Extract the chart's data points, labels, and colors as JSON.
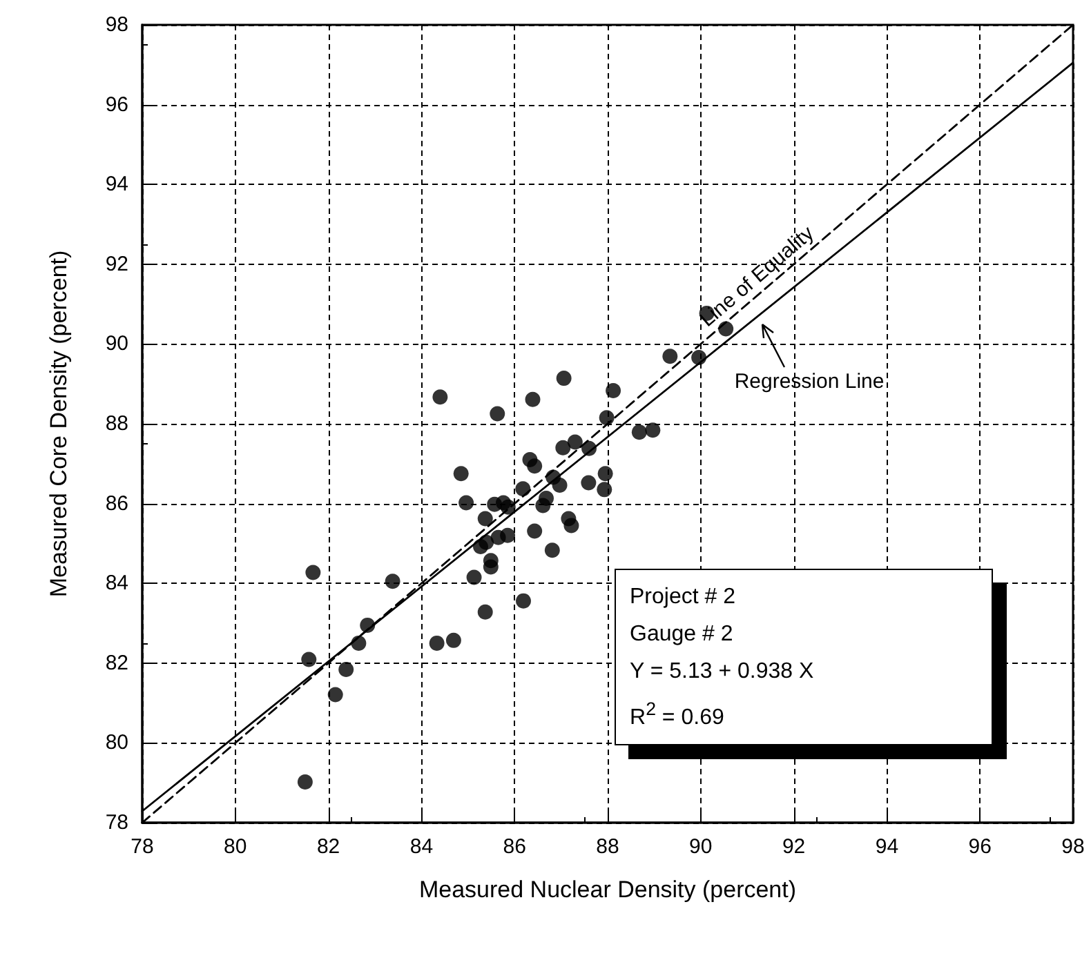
{
  "chart_data": {
    "type": "scatter",
    "xlabel": "Measured Nuclear Density (percent)",
    "ylabel": "Measured Core Density (percent)",
    "xlim": [
      78,
      98
    ],
    "xticks": [
      78,
      80,
      82,
      84,
      86,
      88,
      90,
      92,
      94,
      96,
      98
    ],
    "ylim": [
      78,
      98
    ],
    "yticks": [
      78,
      80,
      82,
      84,
      86,
      88,
      90,
      92,
      94,
      96,
      98
    ],
    "grid": true,
    "annotations": [
      "Project # 2",
      "Gauge # 2",
      "Y  = 5.13 + 0.938 X",
      "R$^{2}$ = 0.69"
    ],
    "series": [
      {
        "color": "#000000",
        "marker": "circle",
        "x": [
          84.4,
          87.06,
          86.39,
          85.63,
          87.98,
          87.04,
          87.3,
          87.6,
          87.95,
          86.33,
          86.43,
          84.85,
          87.59,
          87.93,
          86.18,
          86.83,
          86.97,
          86.68,
          86.61,
          84.96,
          85.57,
          85.76,
          85.86,
          85.37,
          87.16,
          87.22,
          86.43,
          85.65,
          85.85,
          85.27,
          85.39,
          85.49,
          85.49,
          86.81,
          81.67,
          83.38,
          85.13,
          86.19,
          85.37,
          82.84,
          82.65,
          84.33,
          84.69,
          81.58,
          82.38,
          82.15,
          81.5,
          90.13,
          90.54,
          89.34,
          89.96,
          88.12,
          88.68,
          88.97
        ],
        "values": [
          88.67,
          89.14,
          88.61,
          88.25,
          88.15,
          87.4,
          87.54,
          87.38,
          86.75,
          87.1,
          86.94,
          86.75,
          86.52,
          86.35,
          86.37,
          86.66,
          86.46,
          86.13,
          85.95,
          86.02,
          85.98,
          86.02,
          85.91,
          85.62,
          85.62,
          85.45,
          85.31,
          85.15,
          85.2,
          84.92,
          85.03,
          84.57,
          84.41,
          84.83,
          84.27,
          84.05,
          84.15,
          83.56,
          83.28,
          82.95,
          82.5,
          82.5,
          82.57,
          82.09,
          81.84,
          81.21,
          79.02,
          90.77,
          90.38,
          89.69,
          89.66,
          88.83,
          87.79,
          87.84
        ]
      },
      {
        "type": "line",
        "name": "Line of Equality",
        "color": "#000000",
        "marker": "none",
        "line_style": "dashed",
        "x": [
          78,
          98
        ],
        "values": [
          78,
          98
        ]
      },
      {
        "type": "line",
        "name": "Regression Line",
        "color": "#000000",
        "marker": "none",
        "line_style": "solid",
        "x": [
          78,
          98
        ],
        "values": [
          78.29,
          97.05
        ]
      }
    ]
  }
}
